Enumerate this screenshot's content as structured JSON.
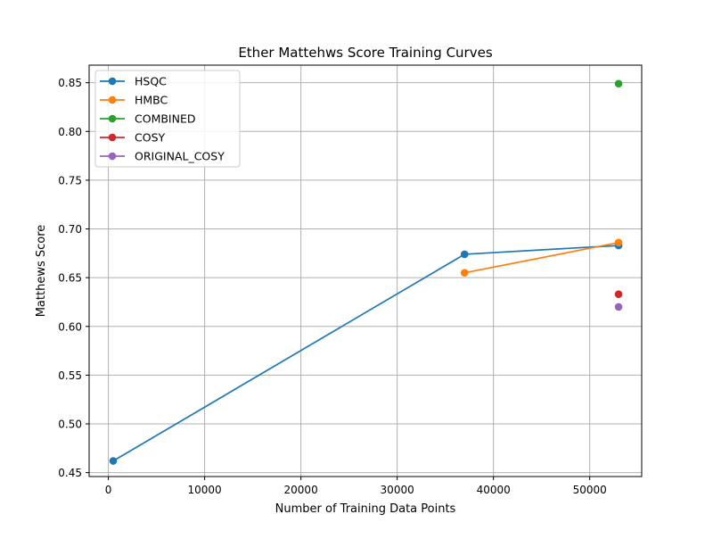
{
  "chart_data": {
    "type": "line",
    "title": "Ether Mattehws Score Training Curves",
    "xlabel": "Number of Training Data Points",
    "ylabel": "Matthews Score",
    "xlim": [
      -2000,
      55400
    ],
    "ylim": [
      0.446,
      0.868
    ],
    "xticks": [
      0,
      10000,
      20000,
      30000,
      40000,
      50000
    ],
    "yticks": [
      0.45,
      0.5,
      0.55,
      0.6,
      0.65,
      0.7,
      0.75,
      0.8,
      0.85
    ],
    "xtick_labels": [
      "0",
      "10000",
      "20000",
      "30000",
      "40000",
      "50000"
    ],
    "ytick_labels": [
      "0.45",
      "0.50",
      "0.55",
      "0.60",
      "0.65",
      "0.70",
      "0.75",
      "0.80",
      "0.85"
    ],
    "grid": true,
    "legend_position": "top-left",
    "series": [
      {
        "name": "HSQC",
        "color": "#1f77b4",
        "x": [
          500,
          37000,
          53000
        ],
        "y": [
          0.462,
          0.674,
          0.683
        ]
      },
      {
        "name": "HMBC",
        "color": "#ff7f0e",
        "x": [
          37000,
          53000
        ],
        "y": [
          0.655,
          0.686
        ]
      },
      {
        "name": "COMBINED",
        "color": "#2ca02c",
        "x": [
          53000
        ],
        "y": [
          0.849
        ]
      },
      {
        "name": "COSY",
        "color": "#d62728",
        "x": [
          53000
        ],
        "y": [
          0.633
        ]
      },
      {
        "name": "ORIGINAL_COSY",
        "color": "#9467bd",
        "x": [
          53000
        ],
        "y": [
          0.62
        ]
      }
    ]
  }
}
